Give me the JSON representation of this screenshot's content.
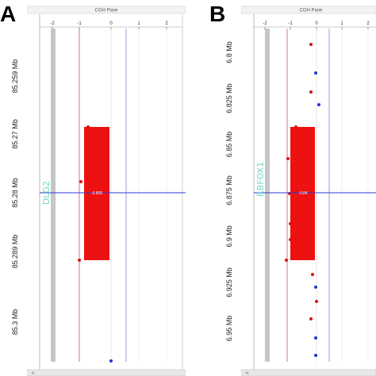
{
  "panels": [
    {
      "id": "A",
      "letter": "A",
      "pane_title": "CGH Pane",
      "x_ticks": [
        "-2",
        "-1",
        "0",
        "1",
        "2"
      ],
      "y_labels": [
        "85.259 Mb",
        "85.27 Mb",
        "85.28 Mb",
        "85.289 Mb",
        "85.3 Mb"
      ],
      "gene_label": "DLG2",
      "center_value": "-0.605",
      "scroll_left": "<",
      "colors": {
        "segment": "#ee1111",
        "probe_red": "#dd1111",
        "probe_blue": "#2233cc",
        "threshold_neg": "#e04a6a",
        "threshold_pos": "#8a80d8",
        "center_line": "#2b3bd0",
        "gene_label": "#6fd9c8"
      }
    },
    {
      "id": "B",
      "letter": "B",
      "pane_title": "CGH Pane",
      "x_ticks": [
        "-2",
        "-1",
        "0",
        "1",
        "2"
      ],
      "y_labels": [
        "6.8 Mb",
        "6.825 Mb",
        "6.85 Mb",
        "6.875 Mb",
        "6.9 Mb",
        "6.925 Mb",
        "6.95 Mb"
      ],
      "gene_label": "RBFOX1",
      "center_value": "-0.84",
      "scroll_left": "<",
      "colors": {
        "segment": "#ee1111",
        "probe_red": "#dd1111",
        "probe_blue": "#2233cc",
        "threshold_neg": "#e04a6a",
        "threshold_pos": "#8a80d8",
        "center_line": "#2b3bd0",
        "gene_label": "#6fd9c8"
      }
    }
  ]
}
